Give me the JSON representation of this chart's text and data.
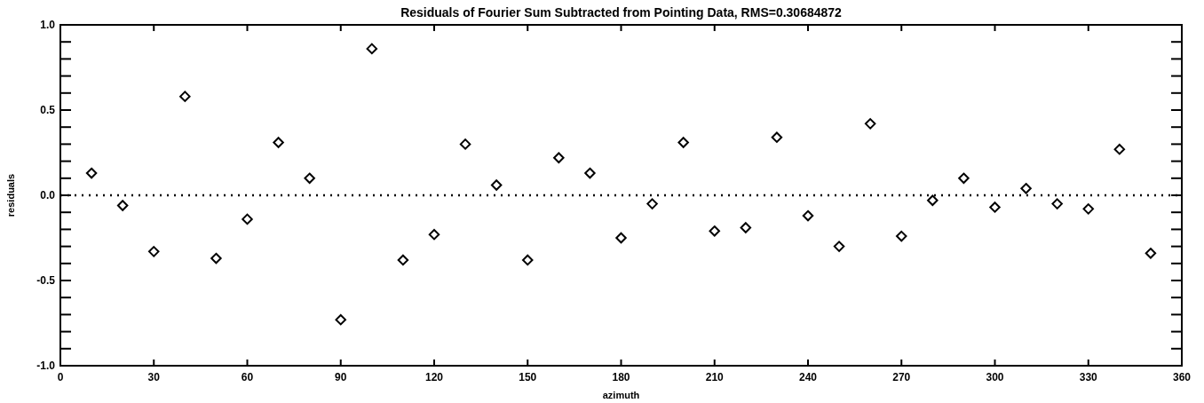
{
  "chart_data": {
    "type": "scatter",
    "title": "Residuals of Fourier Sum Subtracted from Pointing Data, RMS=0.30684872",
    "xlabel": "azimuth",
    "ylabel": "residuals",
    "x": [
      10,
      20,
      30,
      40,
      50,
      60,
      70,
      80,
      90,
      100,
      110,
      120,
      130,
      140,
      150,
      160,
      170,
      180,
      190,
      200,
      210,
      220,
      230,
      240,
      250,
      260,
      270,
      280,
      290,
      300,
      310,
      320,
      330,
      340,
      350
    ],
    "values": [
      0.13,
      -0.06,
      -0.33,
      0.58,
      -0.37,
      -0.14,
      0.31,
      0.1,
      -0.73,
      0.86,
      -0.38,
      -0.23,
      0.3,
      0.06,
      -0.38,
      0.22,
      0.13,
      -0.25,
      -0.05,
      0.31,
      -0.21,
      -0.19,
      0.34,
      -0.12,
      -0.3,
      0.42,
      -0.24,
      -0.03,
      0.1,
      -0.07,
      0.04,
      -0.05,
      -0.08,
      0.27,
      -0.34
    ],
    "color": "#000000",
    "marker": "diamond",
    "xlim": [
      0,
      360
    ],
    "xticks": [
      0,
      30,
      60,
      90,
      120,
      150,
      180,
      210,
      240,
      270,
      300,
      330,
      360
    ],
    "ylim": [
      -1,
      1
    ],
    "yticks": [
      {
        "value": -1,
        "label": "-1.0"
      },
      {
        "value": -0.9,
        "label": null
      },
      {
        "value": -0.8,
        "label": null
      },
      {
        "value": -0.7,
        "label": null
      },
      {
        "value": -0.6,
        "label": null
      },
      {
        "value": -0.5,
        "label": "-0.5"
      },
      {
        "value": -0.4,
        "label": null
      },
      {
        "value": -0.3,
        "label": null
      },
      {
        "value": -0.2,
        "label": null
      },
      {
        "value": -0.1,
        "label": null
      },
      {
        "value": 0,
        "label": "0.0"
      },
      {
        "value": 0.1,
        "label": null
      },
      {
        "value": 0.2,
        "label": null
      },
      {
        "value": 0.3,
        "label": null
      },
      {
        "value": 0.4,
        "label": null
      },
      {
        "value": 0.5,
        "label": "0.5"
      },
      {
        "value": 0.6,
        "label": null
      },
      {
        "value": 0.7,
        "label": null
      },
      {
        "value": 0.8,
        "label": null
      },
      {
        "value": 0.9,
        "label": null
      },
      {
        "value": 1,
        "label": "1.0"
      }
    ],
    "ref_lines": [
      {
        "axis": "y",
        "value": 0,
        "line_style": "dotted"
      }
    ],
    "grid": false
  }
}
